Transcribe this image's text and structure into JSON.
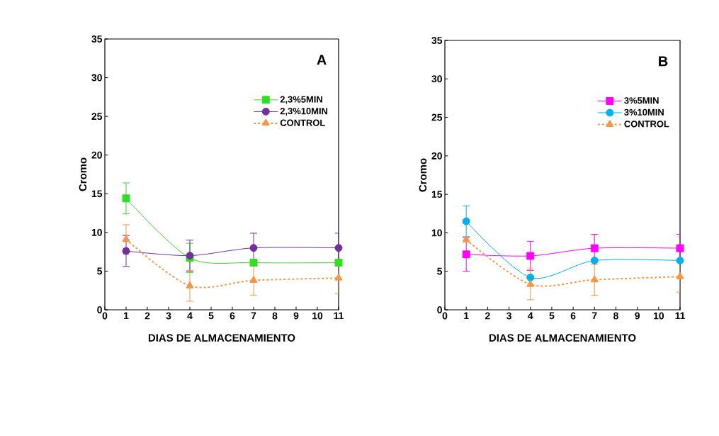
{
  "chart_data": [
    {
      "type": "line",
      "annotations": [
        "A"
      ],
      "xlabel": "DIAS DE ALMACENAMIENTO",
      "ylabel": "Cromo",
      "x": [
        1,
        4,
        7,
        11
      ],
      "xlim": [
        0,
        11
      ],
      "xticks": [
        0,
        1,
        2,
        3,
        4,
        5,
        6,
        7,
        8,
        9,
        10,
        11
      ],
      "ylim": [
        0,
        35
      ],
      "yticks": [
        0,
        5,
        10,
        15,
        20,
        25,
        30,
        35
      ],
      "legend": "top right",
      "grid": false,
      "series": [
        {
          "name": "2,3%5MIN",
          "color": "#33dd22",
          "marker": "square",
          "line_style": "solid",
          "values": [
            14.4,
            6.7,
            6.1,
            6.1
          ],
          "errors": [
            2,
            1.9,
            null,
            null
          ]
        },
        {
          "name": "2,3%10MIN",
          "color": "#7030a0",
          "marker": "circle",
          "line_style": "solid",
          "values": [
            7.6,
            7.0,
            8.0,
            8.0
          ],
          "errors": [
            2,
            2,
            1.9,
            1.9
          ]
        },
        {
          "name": "CONTROL",
          "color": "#f79646",
          "marker": "triangle",
          "line_style": "dashed",
          "values": [
            9.1,
            3.1,
            3.8,
            4.1
          ],
          "errors": [
            1.9,
            2,
            1.9,
            2
          ]
        }
      ]
    },
    {
      "type": "line",
      "annotations": [
        "B"
      ],
      "xlabel": "DIAS DE ALMACENAMIENTO",
      "ylabel": "Cromo",
      "x": [
        1,
        4,
        7,
        11
      ],
      "xlim": [
        0,
        11
      ],
      "xticks": [
        0,
        1,
        2,
        3,
        4,
        5,
        6,
        7,
        8,
        9,
        10,
        11
      ],
      "ylim": [
        0,
        35
      ],
      "yticks": [
        0,
        5,
        10,
        15,
        20,
        25,
        30,
        35
      ],
      "legend": "top right",
      "grid": false,
      "series": [
        {
          "name": "3%5MIN",
          "color": "#ff00ff",
          "marker": "square",
          "line_style": "solid",
          "values": [
            7.2,
            7.0,
            8.0,
            8.0
          ],
          "errors": [
            2.2,
            1.9,
            1.8,
            1.8
          ]
        },
        {
          "name": "3%10MIN",
          "color": "#00b0f0",
          "marker": "circle",
          "line_style": "solid",
          "values": [
            11.5,
            4.2,
            6.4,
            6.4
          ],
          "errors": [
            2,
            null,
            null,
            null
          ]
        },
        {
          "name": "CONTROL",
          "color": "#f79646",
          "marker": "triangle",
          "line_style": "dashed",
          "values": [
            9.1,
            3.3,
            3.9,
            4.3
          ],
          "errors": [
            null,
            2,
            2,
            2
          ]
        }
      ]
    }
  ]
}
